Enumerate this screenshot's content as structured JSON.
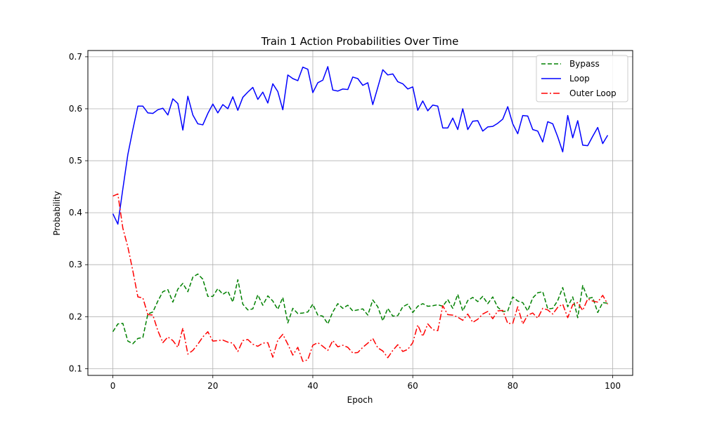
{
  "chart_data": {
    "type": "line",
    "title": "Train 1 Action Probabilities Over Time",
    "xlabel": "Epoch",
    "ylabel": "Probability",
    "xlim": [
      -5,
      104
    ],
    "ylim": [
      0.087,
      0.712
    ],
    "xticks": [
      0,
      20,
      40,
      60,
      80,
      100
    ],
    "yticks": [
      0.1,
      0.2,
      0.3,
      0.4,
      0.5,
      0.6,
      0.7
    ],
    "xtick_labels": [
      "0",
      "20",
      "40",
      "60",
      "80",
      "100"
    ],
    "ytick_labels": [
      "0.1",
      "0.2",
      "0.3",
      "0.4",
      "0.5",
      "0.6",
      "0.7"
    ],
    "grid": true,
    "legend_position": "upper-right",
    "x": [
      0,
      1,
      2,
      3,
      4,
      5,
      6,
      7,
      8,
      9,
      10,
      11,
      12,
      13,
      14,
      15,
      16,
      17,
      18,
      19,
      20,
      21,
      22,
      23,
      24,
      25,
      26,
      27,
      28,
      29,
      30,
      31,
      32,
      33,
      34,
      35,
      36,
      37,
      38,
      39,
      40,
      41,
      42,
      43,
      44,
      45,
      46,
      47,
      48,
      49,
      50,
      51,
      52,
      53,
      54,
      55,
      56,
      57,
      58,
      59,
      60,
      61,
      62,
      63,
      64,
      65,
      66,
      67,
      68,
      69,
      70,
      71,
      72,
      73,
      74,
      75,
      76,
      77,
      78,
      79,
      80,
      81,
      82,
      83,
      84,
      85,
      86,
      87,
      88,
      89,
      90,
      91,
      92,
      93,
      94,
      95,
      96,
      97,
      98,
      99
    ],
    "series": [
      {
        "name": "Bypass",
        "color": "#008000",
        "dash": "dashed",
        "values": [
          0.171,
          0.186,
          0.187,
          0.153,
          0.148,
          0.158,
          0.16,
          0.205,
          0.209,
          0.23,
          0.248,
          0.252,
          0.228,
          0.253,
          0.264,
          0.248,
          0.276,
          0.282,
          0.272,
          0.239,
          0.239,
          0.254,
          0.243,
          0.249,
          0.228,
          0.271,
          0.224,
          0.213,
          0.215,
          0.242,
          0.222,
          0.24,
          0.23,
          0.214,
          0.237,
          0.188,
          0.216,
          0.206,
          0.207,
          0.209,
          0.224,
          0.203,
          0.201,
          0.186,
          0.209,
          0.225,
          0.216,
          0.222,
          0.211,
          0.213,
          0.215,
          0.203,
          0.232,
          0.219,
          0.192,
          0.216,
          0.201,
          0.202,
          0.219,
          0.224,
          0.208,
          0.22,
          0.225,
          0.22,
          0.221,
          0.223,
          0.22,
          0.233,
          0.216,
          0.243,
          0.211,
          0.231,
          0.237,
          0.229,
          0.239,
          0.225,
          0.238,
          0.218,
          0.21,
          0.211,
          0.238,
          0.23,
          0.227,
          0.211,
          0.236,
          0.246,
          0.248,
          0.215,
          0.216,
          0.231,
          0.256,
          0.219,
          0.238,
          0.198,
          0.26,
          0.235,
          0.237,
          0.208,
          0.227,
          0.226
        ]
      },
      {
        "name": "Loop",
        "color": "#0000ff",
        "dash": "solid",
        "values": [
          0.398,
          0.378,
          0.446,
          0.512,
          0.56,
          0.605,
          0.605,
          0.592,
          0.591,
          0.598,
          0.601,
          0.588,
          0.619,
          0.61,
          0.559,
          0.624,
          0.588,
          0.571,
          0.569,
          0.591,
          0.609,
          0.592,
          0.608,
          0.6,
          0.623,
          0.597,
          0.622,
          0.632,
          0.641,
          0.618,
          0.632,
          0.611,
          0.648,
          0.633,
          0.598,
          0.665,
          0.658,
          0.654,
          0.68,
          0.676,
          0.631,
          0.65,
          0.655,
          0.681,
          0.636,
          0.634,
          0.638,
          0.637,
          0.661,
          0.658,
          0.645,
          0.65,
          0.608,
          0.641,
          0.675,
          0.665,
          0.667,
          0.652,
          0.648,
          0.638,
          0.642,
          0.597,
          0.615,
          0.596,
          0.607,
          0.605,
          0.563,
          0.563,
          0.582,
          0.56,
          0.6,
          0.56,
          0.576,
          0.577,
          0.557,
          0.565,
          0.566,
          0.572,
          0.58,
          0.604,
          0.571,
          0.552,
          0.587,
          0.586,
          0.56,
          0.557,
          0.536,
          0.575,
          0.571,
          0.546,
          0.517,
          0.587,
          0.544,
          0.577,
          0.53,
          0.529,
          0.547,
          0.564,
          0.533,
          0.549
        ]
      },
      {
        "name": "Outer Loop",
        "color": "#ff0000",
        "dash": "dashdot",
        "values": [
          0.432,
          0.436,
          0.37,
          0.334,
          0.288,
          0.238,
          0.236,
          0.204,
          0.203,
          0.173,
          0.15,
          0.161,
          0.154,
          0.141,
          0.178,
          0.128,
          0.135,
          0.147,
          0.161,
          0.171,
          0.153,
          0.154,
          0.155,
          0.151,
          0.149,
          0.133,
          0.154,
          0.156,
          0.147,
          0.143,
          0.149,
          0.15,
          0.122,
          0.155,
          0.166,
          0.147,
          0.126,
          0.141,
          0.114,
          0.117,
          0.145,
          0.15,
          0.143,
          0.135,
          0.154,
          0.142,
          0.145,
          0.141,
          0.13,
          0.131,
          0.141,
          0.149,
          0.158,
          0.14,
          0.134,
          0.121,
          0.135,
          0.146,
          0.133,
          0.137,
          0.15,
          0.184,
          0.162,
          0.186,
          0.175,
          0.173,
          0.221,
          0.204,
          0.203,
          0.199,
          0.193,
          0.205,
          0.189,
          0.195,
          0.205,
          0.21,
          0.196,
          0.211,
          0.212,
          0.187,
          0.187,
          0.219,
          0.186,
          0.203,
          0.207,
          0.197,
          0.216,
          0.213,
          0.205,
          0.218,
          0.224,
          0.198,
          0.223,
          0.227,
          0.212,
          0.234,
          0.23,
          0.228,
          0.241,
          0.224
        ]
      }
    ]
  }
}
